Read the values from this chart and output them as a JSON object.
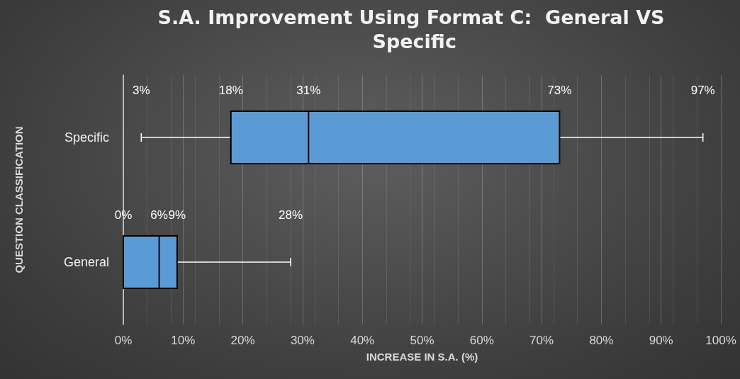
{
  "chart_data": {
    "type": "box",
    "orientation": "horizontal",
    "title": "S.A. Improvement Using Format C:  General VS Specific",
    "xlabel": "INCREASE IN S.A. (%)",
    "ylabel": "QUESTION CLASSIFICATION",
    "categories": [
      "Specific",
      "General"
    ],
    "series": [
      {
        "color": "#5b9bd5",
        "boxes": [
          {
            "low": 3,
            "q1": 18,
            "median": 31,
            "q3": 73,
            "high": 97
          },
          {
            "low": 0,
            "q1": 0,
            "median": 6,
            "q3": 9,
            "high": 28
          }
        ],
        "value_labels": [
          [
            "3%",
            "18%",
            "31%",
            "73%",
            "97%"
          ],
          [
            "0%",
            null,
            "6%",
            "9%",
            "28%"
          ]
        ]
      }
    ],
    "xlim": [
      0,
      100
    ],
    "xticks": [
      {
        "value": 0,
        "label": "0%"
      },
      {
        "value": 10,
        "label": "10%"
      },
      {
        "value": 20,
        "label": "20%"
      },
      {
        "value": 30,
        "label": "30%"
      },
      {
        "value": 40,
        "label": "40%"
      },
      {
        "value": 50,
        "label": "50%"
      },
      {
        "value": 60,
        "label": "60%"
      },
      {
        "value": 70,
        "label": "70%"
      },
      {
        "value": 80,
        "label": "80%"
      },
      {
        "value": 90,
        "label": "90%"
      },
      {
        "value": 100,
        "label": "100%"
      }
    ],
    "grid": "x"
  }
}
